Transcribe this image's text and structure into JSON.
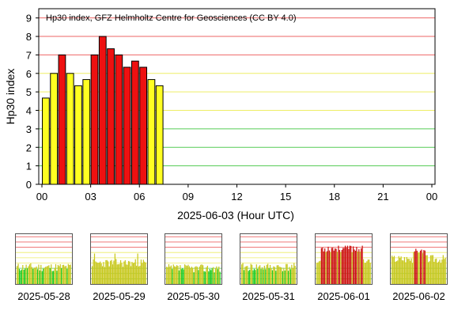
{
  "colors": {
    "red": "#ee1111",
    "yellow": "#ffff22",
    "green": "#22bb22",
    "olive": "#c8c81e",
    "grid_red": "#ee6666",
    "grid_yellow": "#eeee66",
    "grid_green": "#55cc55",
    "thumb_red": "#cc1111",
    "thumb_green": "#22cc22"
  },
  "chart_data": {
    "type": "bar",
    "title": "Hp30 index, GFZ Helmholtz Centre for Geosciences (CC BY 4.0)",
    "xlabel": "2025-06-03 (Hour UTC)",
    "ylabel": "Hp30 index",
    "ylim": [
      0,
      9.5
    ],
    "xlim": [
      0,
      24
    ],
    "yticks": [
      "0",
      "1",
      "2",
      "3",
      "4",
      "5",
      "6",
      "7",
      "8",
      "9"
    ],
    "xticks": [
      "00",
      "03",
      "06",
      "09",
      "12",
      "15",
      "18",
      "21",
      "00"
    ],
    "grid": "horizontal lines at 1-9 (green 1-3, yellow 4-6, red 7-9)",
    "bars": [
      {
        "hour": 0.0,
        "value": 4.667,
        "level": "yellow"
      },
      {
        "hour": 0.5,
        "value": 6.0,
        "level": "yellow"
      },
      {
        "hour": 1.0,
        "value": 7.0,
        "level": "red"
      },
      {
        "hour": 1.5,
        "value": 6.0,
        "level": "yellow"
      },
      {
        "hour": 2.0,
        "value": 5.333,
        "level": "yellow"
      },
      {
        "hour": 2.5,
        "value": 5.667,
        "level": "yellow"
      },
      {
        "hour": 3.0,
        "value": 7.0,
        "level": "red"
      },
      {
        "hour": 3.5,
        "value": 8.0,
        "level": "red"
      },
      {
        "hour": 4.0,
        "value": 7.333,
        "level": "red"
      },
      {
        "hour": 4.5,
        "value": 7.0,
        "level": "red"
      },
      {
        "hour": 5.0,
        "value": 6.333,
        "level": "red"
      },
      {
        "hour": 5.5,
        "value": 6.667,
        "level": "red"
      },
      {
        "hour": 6.0,
        "value": 6.333,
        "level": "red"
      },
      {
        "hour": 6.5,
        "value": 5.667,
        "level": "yellow"
      },
      {
        "hour": 7.0,
        "value": 5.333,
        "level": "yellow"
      }
    ]
  },
  "thumbnails": [
    {
      "date": "2025-05-28",
      "seed": 11,
      "profile": "low"
    },
    {
      "date": "2025-05-29",
      "seed": 23,
      "profile": "mixed"
    },
    {
      "date": "2025-05-30",
      "seed": 37,
      "profile": "quiet"
    },
    {
      "date": "2025-05-31",
      "seed": 41,
      "profile": "low"
    },
    {
      "date": "2025-06-01",
      "seed": 53,
      "profile": "storm"
    },
    {
      "date": "2025-06-02",
      "seed": 67,
      "profile": "active"
    }
  ]
}
